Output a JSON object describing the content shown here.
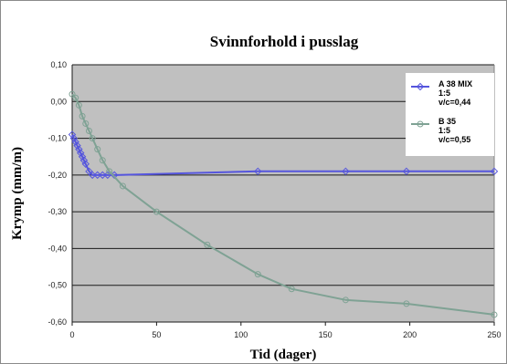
{
  "chart_data": {
    "type": "line",
    "title": "Svinnforhold i pusslag",
    "xlabel": "Tid (dager)",
    "ylabel": "Krymp (mm/m)",
    "xlim": [
      0,
      250
    ],
    "ylim": [
      -0.6,
      0.1
    ],
    "xticks": [
      0,
      50,
      100,
      150,
      200,
      250
    ],
    "xtick_labels": [
      "0",
      "50",
      "100",
      "150",
      "200",
      "250"
    ],
    "yticks": [
      0.1,
      0.0,
      -0.1,
      -0.2,
      -0.3,
      -0.4,
      -0.5,
      -0.6
    ],
    "ytick_labels": [
      "0,10",
      "0,00",
      "-0,10",
      "-0,20",
      "-0,30",
      "-0,40",
      "-0,50",
      "-0,60"
    ],
    "grid": "horizontal",
    "legend_position": "right",
    "background_color": "#c0c0c0",
    "series": [
      {
        "name_lines": [
          "A 38 MIX",
          "1:5",
          "v/c=0,44"
        ],
        "color": "#5555dd",
        "marker": "diamond",
        "x": [
          0,
          1,
          2,
          3,
          4,
          5,
          6,
          7,
          8,
          10,
          12,
          15,
          18,
          21,
          25,
          110,
          162,
          198,
          250
        ],
        "y": [
          -0.09,
          -0.1,
          -0.11,
          -0.12,
          -0.13,
          -0.14,
          -0.15,
          -0.16,
          -0.17,
          -0.19,
          -0.2,
          -0.2,
          -0.2,
          -0.2,
          -0.2,
          -0.19,
          -0.19,
          -0.19,
          -0.19
        ]
      },
      {
        "name_lines": [
          "B 35",
          "1:5",
          "v/c=0,55"
        ],
        "color": "#7fa294",
        "marker": "circle",
        "x": [
          0,
          2,
          4,
          6,
          8,
          10,
          12,
          15,
          18,
          22,
          30,
          50,
          80,
          110,
          130,
          162,
          198,
          250
        ],
        "y": [
          0.02,
          0.01,
          -0.01,
          -0.04,
          -0.06,
          -0.08,
          -0.1,
          -0.13,
          -0.16,
          -0.19,
          -0.23,
          -0.3,
          -0.39,
          -0.47,
          -0.51,
          -0.54,
          -0.55,
          -0.58
        ]
      }
    ]
  }
}
